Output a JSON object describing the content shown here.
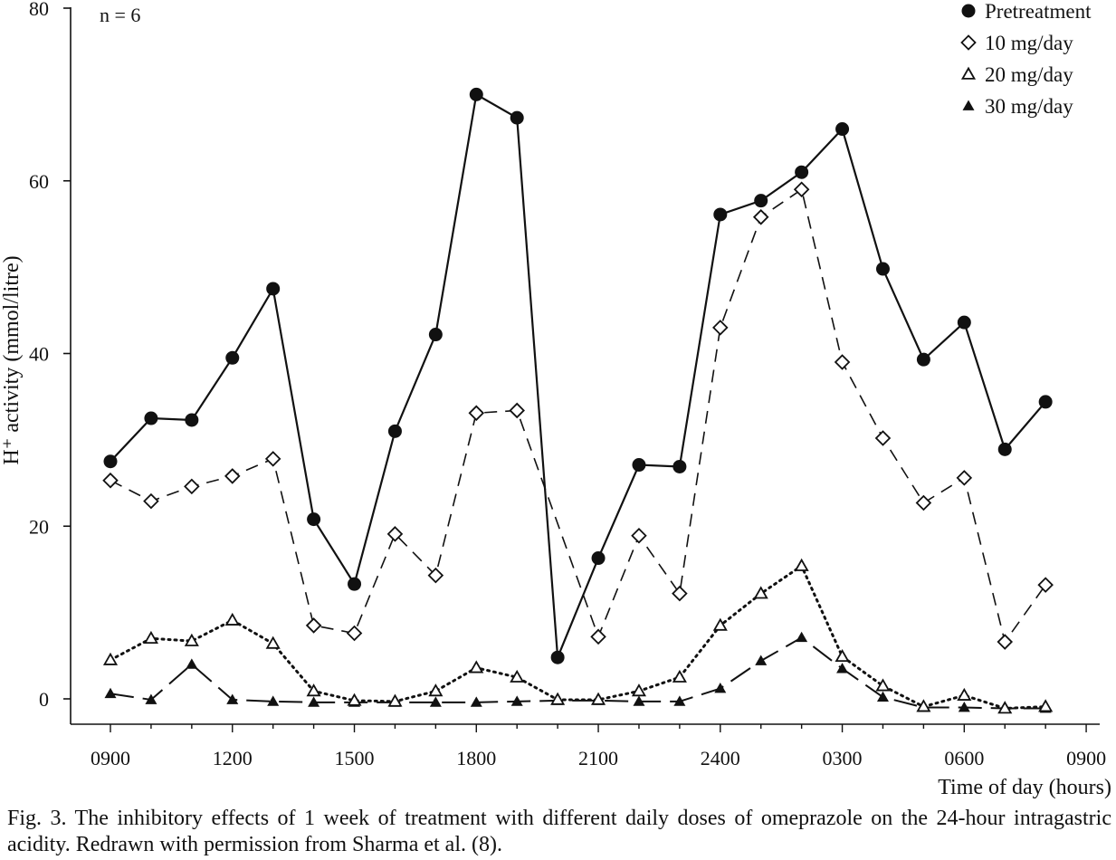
{
  "chart_data": {
    "type": "line",
    "annotation": "n = 6",
    "xlabel": "Time of day (hours)",
    "ylabel": "H⁺ activity (mmol/litre)",
    "x_tick_labels": [
      "0900",
      "1200",
      "1500",
      "1800",
      "2100",
      "2400",
      "0300",
      "0600",
      "0900"
    ],
    "y_ticks": [
      0,
      20,
      40,
      60,
      80
    ],
    "ylim": [
      -3,
      80
    ],
    "x_hours": [
      "0900",
      "1000",
      "1100",
      "1200",
      "1300",
      "1400",
      "1500",
      "1600",
      "1700",
      "1800",
      "1900",
      "2000",
      "2100",
      "2200",
      "2300",
      "2400",
      "0100",
      "0200",
      "0300",
      "0400",
      "0500",
      "0600",
      "0700",
      "0800"
    ],
    "grid": false,
    "legend_position": "top-right",
    "series": [
      {
        "name": "Pretreatment",
        "marker": "filled-circle",
        "line": "solid",
        "values": [
          27.5,
          32.5,
          32.3,
          39.5,
          47.5,
          20.8,
          13.3,
          31.0,
          42.2,
          70.0,
          67.3,
          4.8,
          16.3,
          27.1,
          26.9,
          56.1,
          57.7,
          61.0,
          66.0,
          49.8,
          39.3,
          43.6,
          28.9,
          34.4
        ]
      },
      {
        "name": "10 mg/day",
        "marker": "open-diamond",
        "line": "dashed",
        "values": [
          25.3,
          22.9,
          24.6,
          25.8,
          27.8,
          8.5,
          7.6,
          19.1,
          14.3,
          33.1,
          33.4,
          null,
          7.2,
          18.9,
          12.2,
          43.0,
          55.8,
          59.0,
          39.0,
          30.2,
          22.7,
          25.6,
          6.6,
          13.2
        ]
      },
      {
        "name": "20 mg/day",
        "marker": "open-triangle",
        "line": "dotted",
        "values": [
          4.5,
          7.0,
          6.7,
          9.1,
          6.4,
          0.9,
          -0.2,
          -0.3,
          0.9,
          3.6,
          2.5,
          -0.1,
          -0.1,
          0.9,
          2.5,
          8.5,
          12.2,
          15.4,
          4.9,
          1.5,
          -0.9,
          0.4,
          -1.1,
          -0.9
        ]
      },
      {
        "name": "30 mg/day",
        "marker": "filled-triangle",
        "line": "long-dash",
        "values": [
          0.6,
          -0.1,
          4.0,
          -0.1,
          -0.3,
          -0.4,
          -0.4,
          -0.4,
          -0.4,
          -0.4,
          -0.3,
          -0.2,
          -0.2,
          -0.3,
          -0.3,
          1.2,
          4.4,
          7.1,
          3.5,
          0.2,
          -1.0,
          -1.0,
          -1.1,
          -1.1
        ]
      }
    ]
  },
  "caption": {
    "text": "Fig. 3. The inhibitory effects of 1 week of treatment with different daily doses of omeprazole on the 24-hour intragastric acidity. Redrawn with permission from Sharma et al. (8)."
  }
}
